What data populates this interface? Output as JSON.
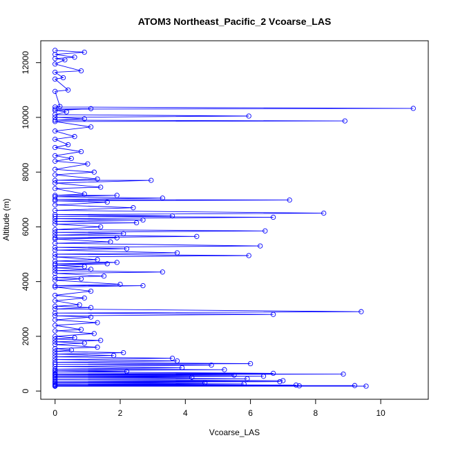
{
  "chart_data": {
    "type": "line",
    "title": "ATOM3 Northeast_Pacific_2 Vcoarse_LAS",
    "xlabel": "Vcoarse_LAS",
    "ylabel": "Altitude (m)",
    "xlim": [
      -0.44,
      11.46
    ],
    "ylim": [
      -300,
      12800
    ],
    "xticks": [
      0,
      2,
      4,
      6,
      8,
      10
    ],
    "yticks": [
      0,
      2000,
      4000,
      6000,
      8000,
      10000,
      12000
    ],
    "xtick_labels": [
      "0",
      "2",
      "4",
      "6",
      "8",
      "10"
    ],
    "ytick_labels": [
      "0",
      "2000",
      "4000",
      "6000",
      "8000",
      "10000",
      "12000"
    ],
    "series_color": "#0000ff",
    "marker": "open-circle",
    "grid": false,
    "legend": "none",
    "points": [
      [
        0,
        12450
      ],
      [
        0.9,
        12380
      ],
      [
        0,
        12300
      ],
      [
        0.6,
        12200
      ],
      [
        0,
        12150
      ],
      [
        0.3,
        12100
      ],
      [
        0,
        11950
      ],
      [
        0.8,
        11700
      ],
      [
        0,
        11650
      ],
      [
        0.25,
        11450
      ],
      [
        0,
        11400
      ],
      [
        0.4,
        11000
      ],
      [
        0,
        10950
      ],
      [
        0.15,
        10400
      ],
      [
        0,
        10380
      ],
      [
        11.0,
        10330
      ],
      [
        0,
        10300
      ],
      [
        1.1,
        10320
      ],
      [
        0,
        10250
      ],
      [
        0.35,
        10200
      ],
      [
        0,
        10100
      ],
      [
        5.95,
        10050
      ],
      [
        0,
        10000
      ],
      [
        0.9,
        9950
      ],
      [
        0,
        9900
      ],
      [
        8.9,
        9870
      ],
      [
        0,
        9850
      ],
      [
        1.1,
        9650
      ],
      [
        0,
        9500
      ],
      [
        0.6,
        9300
      ],
      [
        0,
        9200
      ],
      [
        0.4,
        9000
      ],
      [
        0,
        8900
      ],
      [
        0.8,
        8750
      ],
      [
        0,
        8600
      ],
      [
        0.5,
        8500
      ],
      [
        0,
        8400
      ],
      [
        1.0,
        8300
      ],
      [
        0,
        8100
      ],
      [
        1.2,
        8000
      ],
      [
        0,
        7900
      ],
      [
        1.3,
        7750
      ],
      [
        0,
        7700
      ],
      [
        2.95,
        7700
      ],
      [
        0,
        7600
      ],
      [
        1.4,
        7450
      ],
      [
        0,
        7400
      ],
      [
        0.9,
        7200
      ],
      [
        0,
        7150
      ],
      [
        1.9,
        7150
      ],
      [
        0,
        7100
      ],
      [
        3.3,
        7050
      ],
      [
        0,
        7000
      ],
      [
        7.2,
        6980
      ],
      [
        0,
        6950
      ],
      [
        1.6,
        6900
      ],
      [
        0,
        6800
      ],
      [
        2.4,
        6700
      ],
      [
        0,
        6600
      ],
      [
        8.25,
        6500
      ],
      [
        0,
        6450
      ],
      [
        3.6,
        6400
      ],
      [
        0,
        6380
      ],
      [
        6.7,
        6350
      ],
      [
        0,
        6300
      ],
      [
        2.7,
        6250
      ],
      [
        0,
        6200
      ],
      [
        2.5,
        6150
      ],
      [
        0,
        6100
      ],
      [
        1.4,
        6000
      ],
      [
        0,
        5900
      ],
      [
        6.45,
        5850
      ],
      [
        0,
        5800
      ],
      [
        2.1,
        5750
      ],
      [
        0,
        5700
      ],
      [
        4.35,
        5650
      ],
      [
        0,
        5600
      ],
      [
        1.9,
        5600
      ],
      [
        0,
        5550
      ],
      [
        1.7,
        5450
      ],
      [
        0,
        5400
      ],
      [
        6.3,
        5300
      ],
      [
        0,
        5250
      ],
      [
        2.2,
        5200
      ],
      [
        0,
        5150
      ],
      [
        3.75,
        5050
      ],
      [
        0,
        5000
      ],
      [
        5.95,
        4950
      ],
      [
        0,
        4900
      ],
      [
        1.3,
        4800
      ],
      [
        0,
        4750
      ],
      [
        1.9,
        4700
      ],
      [
        0,
        4650
      ],
      [
        1.6,
        4650
      ],
      [
        0,
        4600
      ],
      [
        0.9,
        4550
      ],
      [
        0,
        4500
      ],
      [
        1.1,
        4450
      ],
      [
        0,
        4400
      ],
      [
        3.3,
        4350
      ],
      [
        0,
        4300
      ],
      [
        1.5,
        4200
      ],
      [
        0,
        4150
      ],
      [
        0.8,
        4100
      ],
      [
        0,
        4050
      ],
      [
        2.0,
        3900
      ],
      [
        0,
        3850
      ],
      [
        2.7,
        3850
      ],
      [
        0,
        3800
      ],
      [
        1.1,
        3650
      ],
      [
        0,
        3500
      ],
      [
        0.9,
        3400
      ],
      [
        0,
        3300
      ],
      [
        0.75,
        3150
      ],
      [
        0,
        3100
      ],
      [
        1.1,
        3050
      ],
      [
        0,
        3000
      ],
      [
        9.4,
        2900
      ],
      [
        0,
        2850
      ],
      [
        6.7,
        2800
      ],
      [
        0,
        2750
      ],
      [
        1.1,
        2700
      ],
      [
        0,
        2600
      ],
      [
        1.3,
        2500
      ],
      [
        0,
        2400
      ],
      [
        0.8,
        2250
      ],
      [
        0,
        2200
      ],
      [
        1.2,
        2100
      ],
      [
        0,
        2000
      ],
      [
        0.6,
        1950
      ],
      [
        0,
        1900
      ],
      [
        1.4,
        1850
      ],
      [
        0,
        1800
      ],
      [
        0.9,
        1750
      ],
      [
        0,
        1700
      ],
      [
        1.3,
        1600
      ],
      [
        0,
        1550
      ],
      [
        0.5,
        1500
      ],
      [
        0,
        1450
      ],
      [
        2.1,
        1400
      ],
      [
        0,
        1350
      ],
      [
        1.8,
        1300
      ],
      [
        0,
        1250
      ],
      [
        3.6,
        1200
      ],
      [
        0,
        1150
      ],
      [
        3.75,
        1100
      ],
      [
        0,
        1050
      ],
      [
        6.0,
        1000
      ],
      [
        0,
        980
      ],
      [
        4.8,
        950
      ],
      [
        0,
        900
      ],
      [
        3.9,
        850
      ],
      [
        0,
        800
      ],
      [
        5.2,
        780
      ],
      [
        0,
        750
      ],
      [
        2.2,
        720
      ],
      [
        0,
        700
      ],
      [
        6.7,
        650
      ],
      [
        0,
        630
      ],
      [
        8.85,
        620
      ],
      [
        0,
        600
      ],
      [
        5.5,
        580
      ],
      [
        0,
        560
      ],
      [
        6.4,
        540
      ],
      [
        0,
        520
      ],
      [
        4.2,
        500
      ],
      [
        0,
        480
      ],
      [
        5.9,
        450
      ],
      [
        0,
        420
      ],
      [
        7.0,
        380
      ],
      [
        0,
        360
      ],
      [
        6.9,
        340
      ],
      [
        0,
        320
      ],
      [
        4.6,
        300
      ],
      [
        0,
        280
      ],
      [
        5.8,
        260
      ],
      [
        0,
        240
      ],
      [
        7.4,
        220
      ],
      [
        0,
        210
      ],
      [
        9.2,
        200
      ],
      [
        0,
        195
      ],
      [
        7.5,
        190
      ],
      [
        0,
        185
      ],
      [
        9.55,
        180
      ],
      [
        0,
        175
      ]
    ]
  }
}
